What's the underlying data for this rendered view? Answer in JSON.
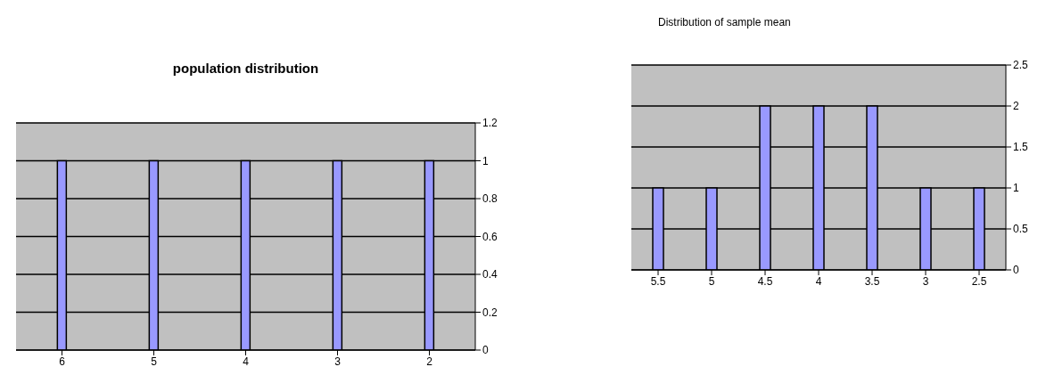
{
  "chart_data": [
    {
      "type": "bar",
      "title": "population distribution",
      "categories": [
        "6",
        "5",
        "4",
        "3",
        "2"
      ],
      "values": [
        1,
        1,
        1,
        1,
        1
      ],
      "color": "#9999ff",
      "ylim": [
        0,
        1.2
      ],
      "yticks": [
        0,
        0.2,
        0.4,
        0.6,
        0.8,
        1,
        1.2
      ],
      "grid": "y"
    },
    {
      "type": "bar",
      "title": "Distribution of sample mean",
      "categories": [
        "5.5",
        "5",
        "4.5",
        "4",
        "3.5",
        "3",
        "2.5"
      ],
      "values": [
        1,
        1,
        2,
        2,
        2,
        1,
        1
      ],
      "color": "#9999ff",
      "ylim": [
        0,
        2.5
      ],
      "yticks": [
        0,
        0.5,
        1,
        1.5,
        2,
        2.5
      ],
      "grid": "y"
    }
  ]
}
